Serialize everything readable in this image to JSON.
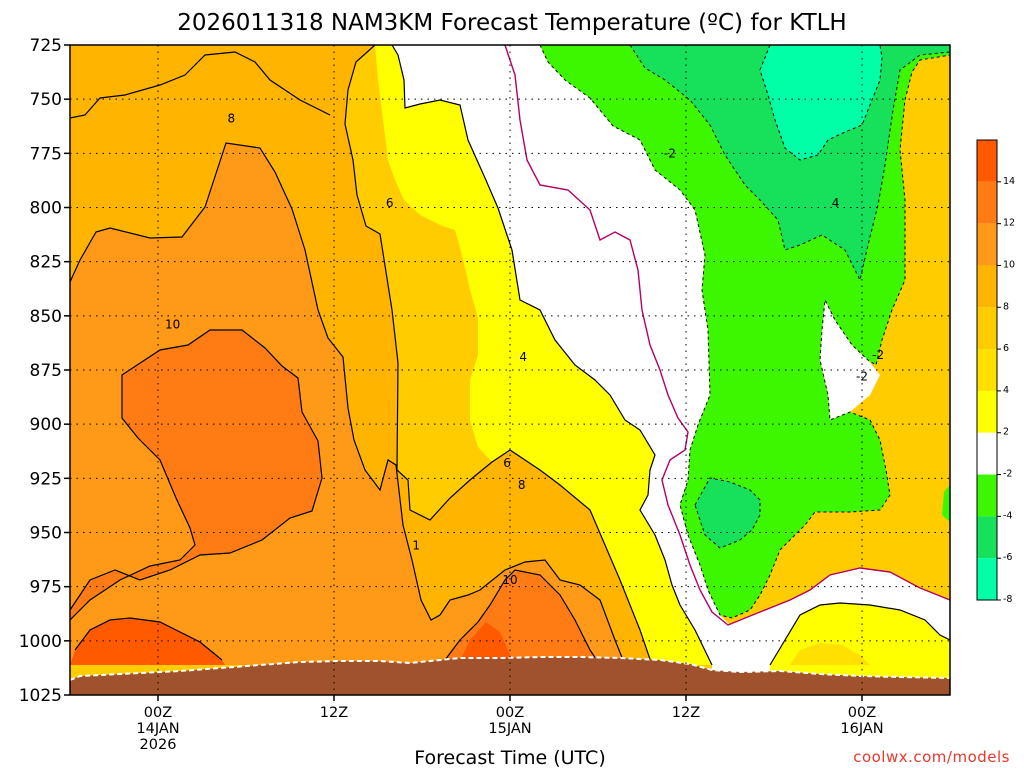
{
  "chart_data": {
    "type": "contour",
    "title": "2026011318 NAM3KM Forecast Temperature (ºC) for KTLH",
    "xlabel": "Forecast Time (UTC)",
    "credit": "coolwx.com/models",
    "y_axis": {
      "quantity": "pressure level (hPa)",
      "ticks": [
        725,
        750,
        775,
        800,
        825,
        850,
        875,
        900,
        925,
        950,
        975,
        1000,
        1025
      ],
      "range": [
        725,
        1025
      ],
      "inverted": true
    },
    "x_axis": {
      "ticks": [
        {
          "hour": 6,
          "lines": [
            "00Z",
            "14JAN",
            "2026"
          ]
        },
        {
          "hour": 18,
          "lines": [
            "12Z"
          ]
        },
        {
          "hour": 30,
          "lines": [
            "00Z",
            "15JAN"
          ]
        },
        {
          "hour": 42,
          "lines": [
            "12Z"
          ]
        },
        {
          "hour": 54,
          "lines": [
            "00Z",
            "16JAN"
          ]
        }
      ],
      "range_hours": [
        0,
        60
      ],
      "range_note": "hours after 2026011318"
    },
    "grid": true,
    "colorbar": {
      "ticks": [
        14,
        12,
        10,
        8,
        6,
        4,
        2,
        -2,
        -4,
        -6,
        -8
      ],
      "bands": [
        {
          "label": "14",
          "color": "#ff5a00"
        },
        {
          "label": "12",
          "color": "#ff7c15"
        },
        {
          "label": "10",
          "color": "#ff9a18"
        },
        {
          "label": "8",
          "color": "#ffb400"
        },
        {
          "label": "6",
          "color": "#ffcc00"
        },
        {
          "label": "4",
          "color": "#ffe000"
        },
        {
          "label": "2",
          "color": "#ffff00"
        },
        {
          "label": "-2",
          "color": "#ffffff"
        },
        {
          "label": "-4",
          "color": "#3cf700"
        },
        {
          "label": "-6",
          "color": "#17e05a"
        },
        {
          "label": "-8",
          "color": "#00ffa6"
        }
      ]
    },
    "ground_color": "#a0522d",
    "zero_line_color": "#b40064",
    "contour_labels": [
      {
        "text": "8",
        "hour": 11.0,
        "p": 759
      },
      {
        "text": "6",
        "hour": 21.8,
        "p": 798
      },
      {
        "text": "10",
        "hour": 7.0,
        "p": 854
      },
      {
        "text": "4",
        "hour": 30.9,
        "p": 869
      },
      {
        "text": "-2",
        "hour": 40.9,
        "p": 775
      },
      {
        "text": "4",
        "hour": 52.2,
        "p": 798
      },
      {
        "text": "-2",
        "hour": 55.1,
        "p": 868
      },
      {
        "text": "-2",
        "hour": 54.0,
        "p": 878
      },
      {
        "text": "6",
        "hour": 29.8,
        "p": 918
      },
      {
        "text": "8",
        "hour": 30.8,
        "p": 928
      },
      {
        "text": "1",
        "hour": 23.6,
        "p": 956
      },
      {
        "text": "10",
        "hour": 30.0,
        "p": 972
      }
    ]
  }
}
